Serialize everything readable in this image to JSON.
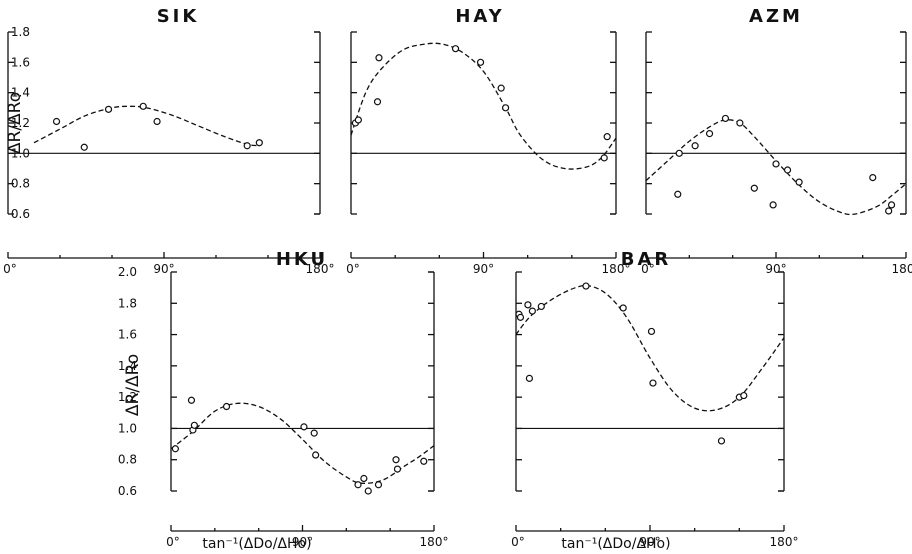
{
  "chart_data": [
    {
      "type": "scatter",
      "title": "SIK",
      "ylabel": "ΔR/ΔRo",
      "xlabel": "",
      "xlim": [
        0,
        180
      ],
      "ylim": [
        0.6,
        1.8
      ],
      "x_tick_labels": [
        "0°",
        "90°",
        "180°"
      ],
      "y_tick_labels": [
        "0.6",
        "0.8",
        "1.0",
        "1.2",
        "1.4",
        "1.6",
        "1.8"
      ],
      "reference_y": 1.0,
      "points": [
        [
          28,
          1.21
        ],
        [
          44,
          1.04
        ],
        [
          58,
          1.29
        ],
        [
          78,
          1.31
        ],
        [
          86,
          1.21
        ],
        [
          138,
          1.05
        ],
        [
          145,
          1.07
        ]
      ],
      "fit": [
        [
          15,
          1.07
        ],
        [
          30,
          1.16
        ],
        [
          45,
          1.25
        ],
        [
          60,
          1.3
        ],
        [
          70,
          1.31
        ],
        [
          80,
          1.3
        ],
        [
          95,
          1.25
        ],
        [
          110,
          1.18
        ],
        [
          125,
          1.11
        ],
        [
          138,
          1.06
        ],
        [
          145,
          1.05
        ]
      ]
    },
    {
      "type": "scatter",
      "title": "HAY",
      "ylabel": "",
      "xlabel": "",
      "xlim": [
        0,
        180
      ],
      "ylim": [
        0.6,
        1.8
      ],
      "x_tick_labels": [
        "0°",
        "90°",
        "180°"
      ],
      "reference_y": 1.0,
      "points": [
        [
          3,
          1.2
        ],
        [
          5,
          1.22
        ],
        [
          18,
          1.34
        ],
        [
          19,
          1.63
        ],
        [
          71,
          1.69
        ],
        [
          88,
          1.6
        ],
        [
          102,
          1.43
        ],
        [
          105,
          1.3
        ],
        [
          172,
          0.97
        ],
        [
          174,
          1.11
        ]
      ],
      "fit": [
        [
          0,
          1.12
        ],
        [
          10,
          1.4
        ],
        [
          20,
          1.55
        ],
        [
          35,
          1.68
        ],
        [
          50,
          1.72
        ],
        [
          62,
          1.72
        ],
        [
          75,
          1.67
        ],
        [
          90,
          1.54
        ],
        [
          105,
          1.3
        ],
        [
          115,
          1.12
        ],
        [
          130,
          0.96
        ],
        [
          145,
          0.9
        ],
        [
          160,
          0.91
        ],
        [
          170,
          0.97
        ],
        [
          180,
          1.1
        ]
      ]
    },
    {
      "type": "scatter",
      "title": "AZM",
      "ylabel": "",
      "xlabel": "",
      "xlim": [
        0,
        180
      ],
      "ylim": [
        0.6,
        1.8
      ],
      "x_tick_labels": [
        "0°",
        "90°",
        "180°"
      ],
      "reference_y": 1.0,
      "points": [
        [
          22,
          0.73
        ],
        [
          23,
          1.0
        ],
        [
          34,
          1.05
        ],
        [
          44,
          1.13
        ],
        [
          55,
          1.23
        ],
        [
          65,
          1.2
        ],
        [
          75,
          0.77
        ],
        [
          88,
          0.66
        ],
        [
          90,
          0.93
        ],
        [
          98,
          0.89
        ],
        [
          106,
          0.81
        ],
        [
          157,
          0.84
        ],
        [
          168,
          0.62
        ],
        [
          170,
          0.66
        ]
      ],
      "fit": [
        [
          0,
          0.82
        ],
        [
          15,
          0.95
        ],
        [
          30,
          1.08
        ],
        [
          45,
          1.18
        ],
        [
          55,
          1.22
        ],
        [
          65,
          1.2
        ],
        [
          75,
          1.11
        ],
        [
          90,
          0.95
        ],
        [
          105,
          0.8
        ],
        [
          120,
          0.68
        ],
        [
          135,
          0.61
        ],
        [
          145,
          0.6
        ],
        [
          160,
          0.65
        ],
        [
          170,
          0.72
        ],
        [
          180,
          0.8
        ]
      ]
    },
    {
      "type": "scatter",
      "title": "HKU",
      "ylabel": "ΔR/ΔRo",
      "xlabel": "tan⁻¹(ΔDo/ΔHo)",
      "xlim": [
        0,
        180
      ],
      "ylim": [
        0.6,
        2.0
      ],
      "x_tick_labels": [
        "0°",
        "90°",
        "180°"
      ],
      "y_tick_labels": [
        "0.6",
        "0.8",
        "1.0",
        "1.2",
        "1.4",
        "1.6",
        "1.8",
        "2.0"
      ],
      "reference_y": 1.0,
      "points": [
        [
          3,
          0.87
        ],
        [
          14,
          1.18
        ],
        [
          15,
          0.99
        ],
        [
          16,
          1.02
        ],
        [
          38,
          1.14
        ],
        [
          91,
          1.01
        ],
        [
          98,
          0.97
        ],
        [
          99,
          0.83
        ],
        [
          128,
          0.64
        ],
        [
          132,
          0.68
        ],
        [
          135,
          0.6
        ],
        [
          142,
          0.64
        ],
        [
          154,
          0.8
        ],
        [
          155,
          0.74
        ],
        [
          173,
          0.79
        ]
      ],
      "fit": [
        [
          0,
          0.87
        ],
        [
          15,
          0.98
        ],
        [
          30,
          1.11
        ],
        [
          45,
          1.16
        ],
        [
          60,
          1.14
        ],
        [
          75,
          1.06
        ],
        [
          90,
          0.93
        ],
        [
          105,
          0.79
        ],
        [
          120,
          0.69
        ],
        [
          130,
          0.65
        ],
        [
          145,
          0.67
        ],
        [
          160,
          0.76
        ],
        [
          170,
          0.82
        ],
        [
          180,
          0.89
        ]
      ]
    },
    {
      "type": "scatter",
      "title": "BAR",
      "ylabel": "",
      "xlabel": "tan⁻¹(ΔDo/ΔHo)",
      "xlim": [
        0,
        180
      ],
      "ylim": [
        0.6,
        2.0
      ],
      "x_tick_labels": [
        "0°",
        "90°",
        "180°"
      ],
      "reference_y": 1.0,
      "points": [
        [
          2,
          1.73
        ],
        [
          3,
          1.71
        ],
        [
          8,
          1.79
        ],
        [
          9,
          1.32
        ],
        [
          11,
          1.75
        ],
        [
          17,
          1.78
        ],
        [
          47,
          1.91
        ],
        [
          72,
          1.77
        ],
        [
          91,
          1.62
        ],
        [
          92,
          1.29
        ],
        [
          138,
          0.92
        ],
        [
          150,
          1.2
        ],
        [
          153,
          1.21
        ]
      ],
      "fit": [
        [
          0,
          1.6
        ],
        [
          10,
          1.72
        ],
        [
          25,
          1.83
        ],
        [
          40,
          1.9
        ],
        [
          50,
          1.91
        ],
        [
          62,
          1.85
        ],
        [
          75,
          1.7
        ],
        [
          90,
          1.45
        ],
        [
          105,
          1.24
        ],
        [
          120,
          1.13
        ],
        [
          135,
          1.12
        ],
        [
          150,
          1.2
        ],
        [
          165,
          1.38
        ],
        [
          180,
          1.58
        ]
      ]
    }
  ]
}
